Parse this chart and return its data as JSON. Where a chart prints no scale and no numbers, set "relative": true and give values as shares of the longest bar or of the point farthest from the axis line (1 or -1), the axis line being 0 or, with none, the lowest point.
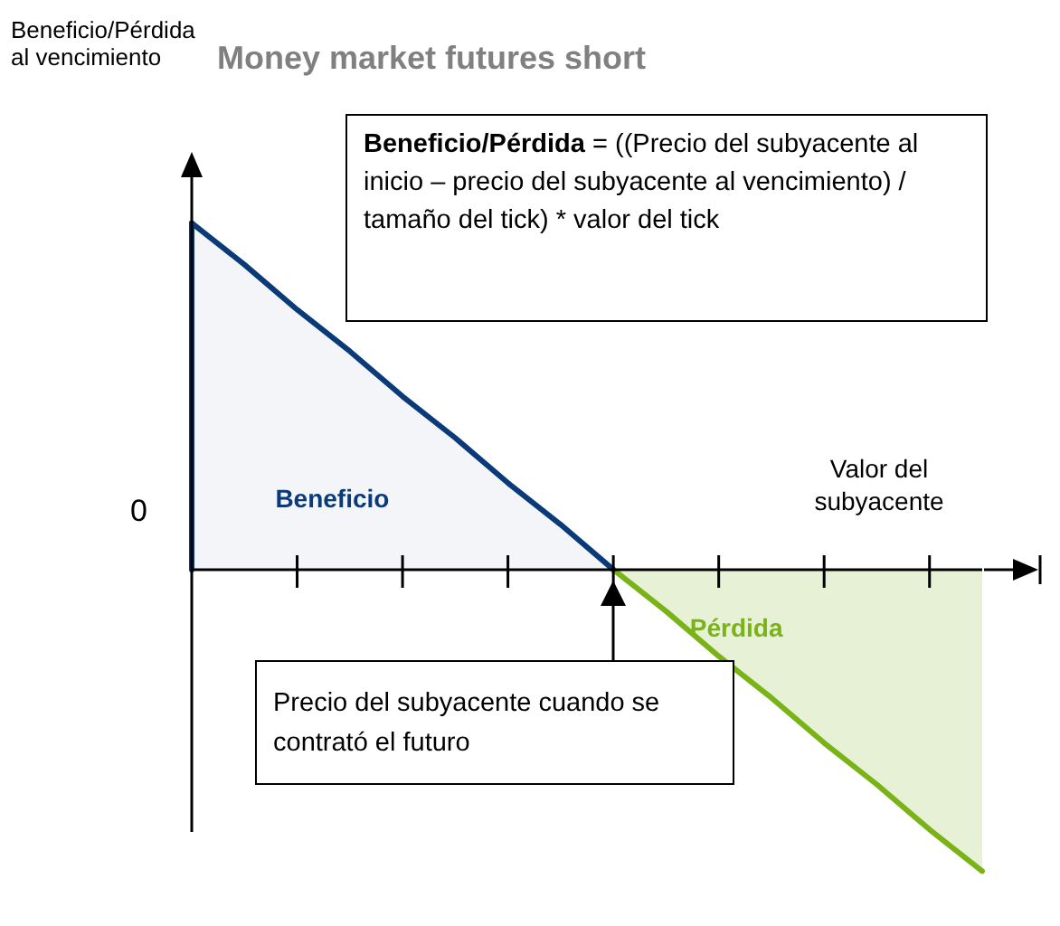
{
  "chart_data": {
    "type": "area",
    "title": "Money market futures short",
    "xlabel": "Valor del subyacente",
    "relative": true,
    "legend": false,
    "categories": [
      null,
      null,
      null,
      null,
      null,
      null,
      null,
      null,
      null,
      null,
      null,
      null,
      null,
      null,
      null,
      null
    ],
    "series": [
      {
        "name": "Beneficio",
        "color": "#0b3a78",
        "values": [
          1,
          0.88,
          0.75,
          0.63,
          0.5,
          0.38,
          0.25,
          0.13,
          0,
          null,
          null,
          null,
          null,
          null,
          null,
          null
        ]
      },
      {
        "name": "Pérdida",
        "color": "#7ab317",
        "values": [
          null,
          null,
          null,
          null,
          null,
          null,
          null,
          null,
          0,
          -0.12,
          -0.25,
          -0.37,
          -0.5,
          -0.62,
          -0.75,
          -0.87
        ]
      }
    ],
    "annotations": [
      "Beneficio/Pérdida al vencimiento",
      "Beneficio/Pérdida = ((Precio del subyacente al inicio – precio del subyacente al vencimiento) / tamaño del tick) * valor del tick",
      "0",
      "Precio del subyacente cuando se contrató el futuro"
    ]
  }
}
